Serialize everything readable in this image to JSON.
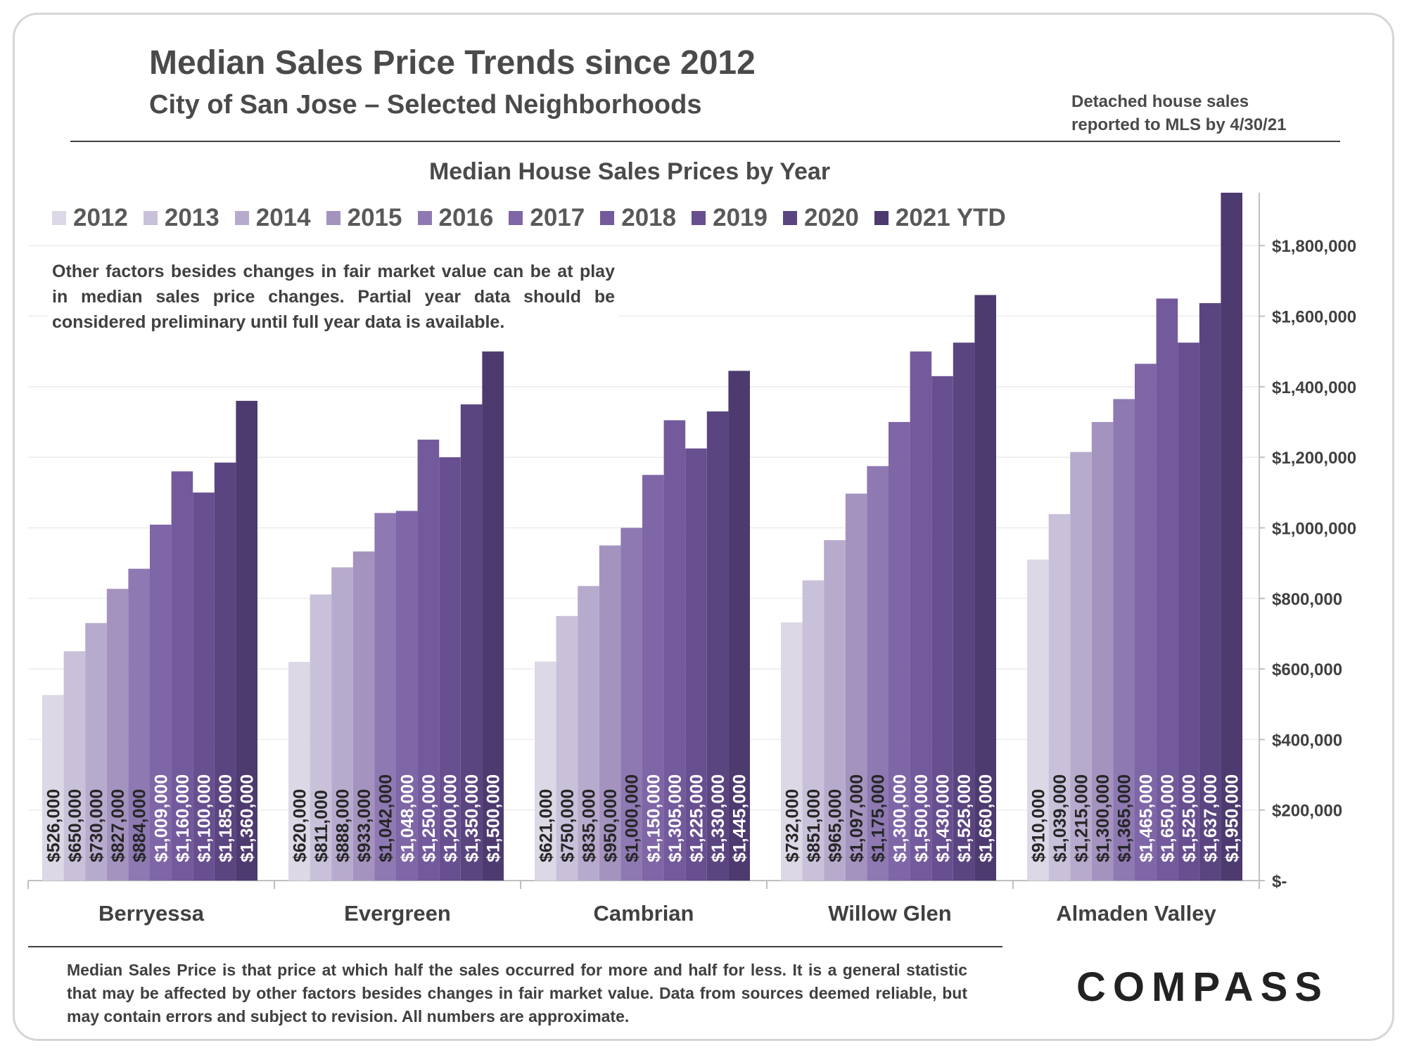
{
  "header": {
    "title": "Median Sales Price Trends since 2012",
    "subtitle": "City of San Jose – Selected Neighborhoods",
    "note_line1": "Detached house sales",
    "note_line2": "reported to MLS by 4/30/21"
  },
  "disclaimer": "Other factors besides changes in fair market value can be at play in median sales price changes. Partial year data should be considered preliminary until full year data is available.",
  "footnote": "Median Sales Price is that price at which half the sales occurred for more and half for less. It is a general statistic that may be affected by other factors besides changes in fair market value. Data from sources deemed reliable, but may contain errors and subject to revision.  All numbers are approximate.",
  "logo": "COMPASS",
  "chart_data": {
    "type": "bar",
    "title": "Median House Sales Prices by Year",
    "categories": [
      "Berryessa",
      "Evergreen",
      "Cambrian",
      "Willow Glen",
      "Almaden Valley"
    ],
    "series": [
      {
        "name": "2012",
        "values": [
          526000,
          620000,
          621000,
          732000,
          910000
        ],
        "labels": [
          "$526,000",
          "$620,000",
          "$621,000",
          "$732,000",
          "$910,000"
        ],
        "color": "#ddd8e6"
      },
      {
        "name": "2013",
        "values": [
          650000,
          811000,
          750000,
          851000,
          1039000
        ],
        "labels": [
          "$650,000",
          "$811,000",
          "$750,000",
          "$851,000",
          "$1,039,000"
        ],
        "color": "#c9c1d9"
      },
      {
        "name": "2014",
        "values": [
          730000,
          888000,
          835000,
          965000,
          1215000
        ],
        "labels": [
          "$730,000",
          "$888,000",
          "$835,000",
          "$965,000",
          "$1,215,000"
        ],
        "color": "#b7abcd"
      },
      {
        "name": "2015",
        "values": [
          827000,
          933000,
          950000,
          1097000,
          1300000
        ],
        "labels": [
          "$827,000",
          "$933,000",
          "$950,000",
          "$1,097,000",
          "$1,300,000"
        ],
        "color": "#a493bf"
      },
      {
        "name": "2016",
        "values": [
          884000,
          1042000,
          1000000,
          1175000,
          1365000
        ],
        "labels": [
          "$884,000",
          "$1,042,000",
          "$1,000,000",
          "$1,175,000",
          "$1,365,000"
        ],
        "color": "#8e79b2"
      },
      {
        "name": "2017",
        "values": [
          1009000,
          1048000,
          1150000,
          1300000,
          1465000
        ],
        "labels": [
          "$1,009,000",
          "$1,048,000",
          "$1,150,000",
          "$1,300,000",
          "$1,465,000"
        ],
        "color": "#7f66a7"
      },
      {
        "name": "2018",
        "values": [
          1160000,
          1250000,
          1305000,
          1500000,
          1650000
        ],
        "labels": [
          "$1,160,000",
          "$1,250,000",
          "$1,305,000",
          "$1,500,000",
          "$1,650,000"
        ],
        "color": "#735a9c"
      },
      {
        "name": "2019",
        "values": [
          1100000,
          1200000,
          1225000,
          1430000,
          1525000
        ],
        "labels": [
          "$1,100,000",
          "$1,200,000",
          "$1,225,000",
          "$1,430,000",
          "$1,525,000"
        ],
        "color": "#684f90"
      },
      {
        "name": "2020",
        "values": [
          1185000,
          1350000,
          1330000,
          1525000,
          1637000
        ],
        "labels": [
          "$1,185,000",
          "$1,350,000",
          "$1,330,000",
          "$1,525,000",
          "$1,637,000"
        ],
        "color": "#5b4581"
      },
      {
        "name": "2021 YTD",
        "values": [
          1360000,
          1500000,
          1445000,
          1660000,
          1950000
        ],
        "labels": [
          "$1,360,000",
          "$1,500,000",
          "$1,445,000",
          "$1,660,000",
          "$1,950,000"
        ],
        "color": "#4d3a6f"
      }
    ],
    "ylim": [
      0,
      1950000
    ],
    "yticks": [
      0,
      200000,
      400000,
      600000,
      800000,
      1000000,
      1200000,
      1400000,
      1600000,
      1800000
    ],
    "ytick_labels": [
      "$-",
      "$200,000",
      "$400,000",
      "$600,000",
      "$800,000",
      "$1,000,000",
      "$1,200,000",
      "$1,400,000",
      "$1,600,000",
      "$1,800,000"
    ],
    "y_axis_side": "right",
    "grid": true,
    "legend": "top"
  }
}
